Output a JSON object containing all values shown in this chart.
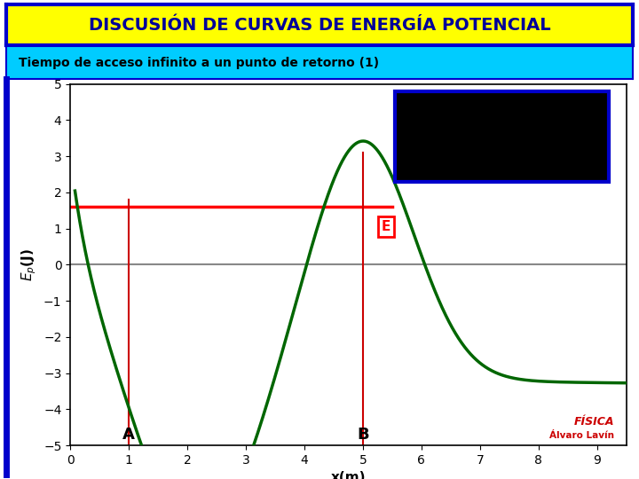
{
  "title": "DISCUSIÓN DE CURVAS DE ENERGÍA POTENCIAL",
  "subtitle": "Tiempo de acceso infinito a un punto de retorno (1)",
  "title_bg": "#FFFF00",
  "title_border": "#0000CC",
  "subtitle_bg": "#00CCFF",
  "plot_bg": "#FFFFFF",
  "outer_bg": "#FFFFFF",
  "curve_color": "#006600",
  "curve_linewidth": 2.5,
  "hline_y": 1.6,
  "hline_color": "#FF0000",
  "hline_lw": 2.5,
  "zero_line_color": "#888888",
  "zero_line_lw": 1.5,
  "vline_x_A": 1.0,
  "vline_x_B": 5.0,
  "vline_color": "#CC0000",
  "vline_lw": 1.5,
  "label_A": "A",
  "label_B": "B",
  "xlabel": "x(m)",
  "ylabel": "E_p(J)",
  "xlim": [
    0,
    9.5
  ],
  "ylim": [
    -5,
    5
  ],
  "xticks": [
    0,
    1,
    2,
    3,
    4,
    5,
    6,
    7,
    8,
    9
  ],
  "yticks": [
    -5,
    -4,
    -3,
    -2,
    -1,
    0,
    1,
    2,
    3,
    4,
    5
  ],
  "logo_text1": "FÍSICA",
  "logo_text2": "Álvaro Lavín",
  "logo_color": "#CC0000"
}
